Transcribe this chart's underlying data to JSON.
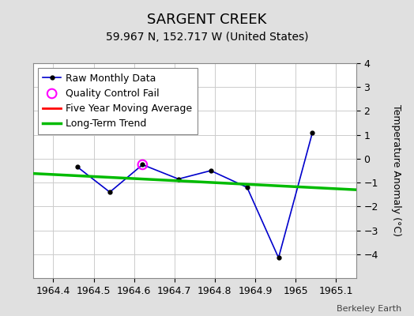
{
  "title": "SARGENT CREEK",
  "subtitle": "59.967 N, 152.717 W (United States)",
  "ylabel": "Temperature Anomaly (°C)",
  "xlim": [
    1964.35,
    1965.15
  ],
  "ylim": [
    -5,
    4
  ],
  "yticks": [
    -4,
    -3,
    -2,
    -1,
    0,
    1,
    2,
    3,
    4
  ],
  "xticks": [
    1964.4,
    1964.5,
    1964.6,
    1964.7,
    1964.8,
    1964.9,
    1965.0,
    1965.1
  ],
  "xtick_labels": [
    "1964.4",
    "1964.5",
    "1964.6",
    "1964.7",
    "1964.8",
    "1964.9",
    "1965",
    "1965.1"
  ],
  "raw_x": [
    1964.46,
    1964.54,
    1964.621,
    1964.71,
    1964.79,
    1964.88,
    1964.958,
    1965.042
  ],
  "raw_y": [
    -0.35,
    -1.4,
    -0.25,
    -0.85,
    -0.5,
    -1.2,
    -4.15,
    1.1
  ],
  "qc_fail_x": [
    1964.621
  ],
  "qc_fail_y": [
    -0.25
  ],
  "trend_x": [
    1964.35,
    1965.15
  ],
  "trend_y": [
    -0.62,
    -1.3
  ],
  "raw_color": "#0000cc",
  "raw_marker_color": "#000000",
  "qc_color": "#ff00ff",
  "trend_color": "#00bb00",
  "moving_avg_color": "#ff0000",
  "background_color": "#e0e0e0",
  "plot_bg_color": "#ffffff",
  "grid_color": "#cccccc",
  "watermark": "Berkeley Earth",
  "title_fontsize": 13,
  "subtitle_fontsize": 10,
  "ylabel_fontsize": 9,
  "tick_fontsize": 9,
  "legend_fontsize": 9
}
